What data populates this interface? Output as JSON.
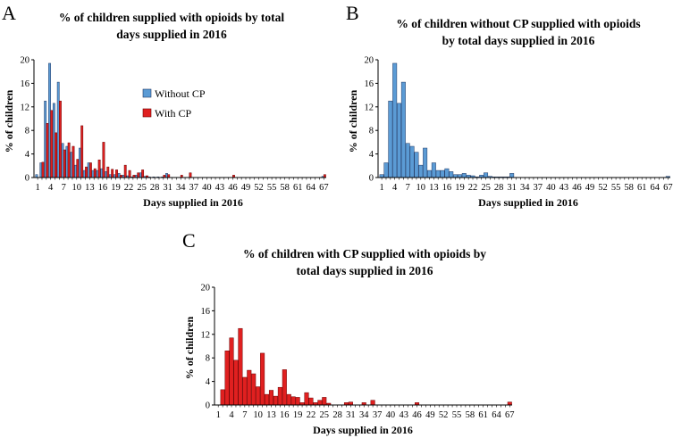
{
  "colors": {
    "without_cp": "#5b9bd5",
    "without_cp_stroke": "#1f3864",
    "with_cp": "#e02020",
    "with_cp_stroke": "#6b0000"
  },
  "chart_data": [
    {
      "panel": "A",
      "type": "bar",
      "title_lines": [
        "% of children supplied with opioids by total",
        "days supplied in 2016"
      ],
      "xlabel": "Days supplied in 2016",
      "ylabel": "% of children",
      "ylim": [
        0,
        20
      ],
      "yticks": [
        0,
        4,
        8,
        12,
        16,
        20
      ],
      "xtick_labels": [
        "1",
        "4",
        "7",
        "10",
        "13",
        "16",
        "19",
        "22",
        "25",
        "28",
        "31",
        "34",
        "37",
        "40",
        "43",
        "46",
        "49",
        "52",
        "55",
        "58",
        "61",
        "64",
        "67"
      ],
      "x": [
        1,
        2,
        3,
        4,
        5,
        6,
        7,
        8,
        9,
        10,
        11,
        12,
        13,
        14,
        15,
        16,
        17,
        18,
        19,
        20,
        21,
        22,
        23,
        24,
        25,
        26,
        27,
        28,
        29,
        30,
        31,
        32,
        33,
        34,
        35,
        36,
        37,
        38,
        39,
        40,
        41,
        42,
        43,
        44,
        45,
        46,
        47,
        48,
        49,
        50,
        51,
        52,
        53,
        54,
        55,
        56,
        57,
        58,
        59,
        60,
        61,
        62,
        63,
        64,
        65,
        66,
        67
      ],
      "legend": [
        "Without CP",
        "With CP"
      ],
      "series": [
        {
          "name": "Without CP",
          "color_key": "without_cp",
          "values": [
            0.5,
            2.5,
            13,
            19.4,
            12.6,
            16.2,
            5.8,
            5.3,
            4.3,
            2.1,
            5,
            1.2,
            2.5,
            1.2,
            1.2,
            1.5,
            1,
            0.5,
            0.5,
            0.7,
            0.4,
            0.3,
            0.1,
            0.4,
            0.8,
            0.2,
            0.1,
            0.1,
            0.1,
            0.1,
            0.7,
            0,
            0,
            0,
            0,
            0,
            0,
            0,
            0,
            0,
            0,
            0,
            0,
            0,
            0,
            0,
            0,
            0,
            0,
            0,
            0,
            0,
            0,
            0,
            0,
            0,
            0,
            0,
            0,
            0,
            0,
            0,
            0,
            0,
            0,
            0,
            0.2
          ]
        },
        {
          "name": "With CP",
          "color_key": "with_cp",
          "values": [
            0,
            2.6,
            9.2,
            11.4,
            7.6,
            13,
            4.7,
            5.9,
            5.3,
            3.1,
            8.8,
            1.8,
            2.5,
            1.5,
            3,
            6,
            1.8,
            1.4,
            1.3,
            0.4,
            2.1,
            1.2,
            0.4,
            0.8,
            1.3,
            0.3,
            0,
            0,
            0,
            0.4,
            0.5,
            0,
            0,
            0.4,
            0,
            0.8,
            0,
            0,
            0,
            0,
            0,
            0,
            0,
            0,
            0,
            0.4,
            0,
            0,
            0,
            0,
            0,
            0,
            0,
            0,
            0,
            0,
            0,
            0,
            0,
            0,
            0,
            0,
            0,
            0,
            0,
            0,
            0.5
          ]
        }
      ]
    },
    {
      "panel": "B",
      "type": "bar",
      "title_lines": [
        "% of children without CP supplied with opioids",
        "by total days supplied in 2016"
      ],
      "xlabel": "Days supplied in 2016",
      "ylabel": "% of children",
      "ylim": [
        0,
        20
      ],
      "yticks": [
        0,
        4,
        8,
        12,
        16,
        20
      ],
      "xtick_labels": [
        "1",
        "4",
        "7",
        "10",
        "13",
        "16",
        "19",
        "22",
        "25",
        "28",
        "31",
        "34",
        "37",
        "40",
        "43",
        "46",
        "49",
        "52",
        "55",
        "58",
        "61",
        "64",
        "67"
      ],
      "x": [
        1,
        2,
        3,
        4,
        5,
        6,
        7,
        8,
        9,
        10,
        11,
        12,
        13,
        14,
        15,
        16,
        17,
        18,
        19,
        20,
        21,
        22,
        23,
        24,
        25,
        26,
        27,
        28,
        29,
        30,
        31,
        32,
        33,
        34,
        35,
        36,
        37,
        38,
        39,
        40,
        41,
        42,
        43,
        44,
        45,
        46,
        47,
        48,
        49,
        50,
        51,
        52,
        53,
        54,
        55,
        56,
        57,
        58,
        59,
        60,
        61,
        62,
        63,
        64,
        65,
        66,
        67
      ],
      "series": [
        {
          "name": "Without CP",
          "color_key": "without_cp",
          "values": [
            0.5,
            2.5,
            13,
            19.4,
            12.6,
            16.2,
            5.8,
            5.3,
            4.3,
            2.1,
            5,
            1.2,
            2.5,
            1.2,
            1.2,
            1.5,
            1,
            0.5,
            0.5,
            0.7,
            0.4,
            0.3,
            0.1,
            0.4,
            0.8,
            0.2,
            0.1,
            0.1,
            0.1,
            0.1,
            0.7,
            0,
            0,
            0,
            0,
            0,
            0,
            0,
            0,
            0,
            0,
            0,
            0,
            0,
            0,
            0,
            0,
            0,
            0,
            0,
            0,
            0,
            0,
            0,
            0,
            0,
            0,
            0,
            0,
            0,
            0,
            0,
            0,
            0,
            0,
            0,
            0.2
          ]
        }
      ]
    },
    {
      "panel": "C",
      "type": "bar",
      "title_lines": [
        "% of children with CP supplied with opioids by",
        "total days supplied in 2016"
      ],
      "xlabel": "Days supplied in 2016",
      "ylabel": "% of children",
      "ylim": [
        0,
        20
      ],
      "yticks": [
        0,
        4,
        8,
        12,
        16,
        20
      ],
      "xtick_labels": [
        "1",
        "4",
        "7",
        "10",
        "13",
        "16",
        "19",
        "22",
        "25",
        "28",
        "31",
        "34",
        "37",
        "40",
        "43",
        "46",
        "49",
        "52",
        "55",
        "58",
        "61",
        "64",
        "67"
      ],
      "x": [
        1,
        2,
        3,
        4,
        5,
        6,
        7,
        8,
        9,
        10,
        11,
        12,
        13,
        14,
        15,
        16,
        17,
        18,
        19,
        20,
        21,
        22,
        23,
        24,
        25,
        26,
        27,
        28,
        29,
        30,
        31,
        32,
        33,
        34,
        35,
        36,
        37,
        38,
        39,
        40,
        41,
        42,
        43,
        44,
        45,
        46,
        47,
        48,
        49,
        50,
        51,
        52,
        53,
        54,
        55,
        56,
        57,
        58,
        59,
        60,
        61,
        62,
        63,
        64,
        65,
        66,
        67
      ],
      "series": [
        {
          "name": "With CP",
          "color_key": "with_cp",
          "values": [
            0,
            2.6,
            9.2,
            11.4,
            7.6,
            13,
            4.7,
            5.9,
            5.3,
            3.1,
            8.8,
            1.8,
            2.5,
            1.5,
            3,
            6,
            1.8,
            1.4,
            1.3,
            0.4,
            2.1,
            1.2,
            0.4,
            0.8,
            1.3,
            0.3,
            0,
            0,
            0,
            0.4,
            0.5,
            0,
            0,
            0.4,
            0,
            0.8,
            0,
            0,
            0,
            0,
            0,
            0,
            0,
            0,
            0,
            0.4,
            0,
            0,
            0,
            0,
            0,
            0,
            0,
            0,
            0,
            0,
            0,
            0,
            0,
            0,
            0,
            0,
            0,
            0,
            0,
            0,
            0.5
          ]
        }
      ]
    }
  ]
}
